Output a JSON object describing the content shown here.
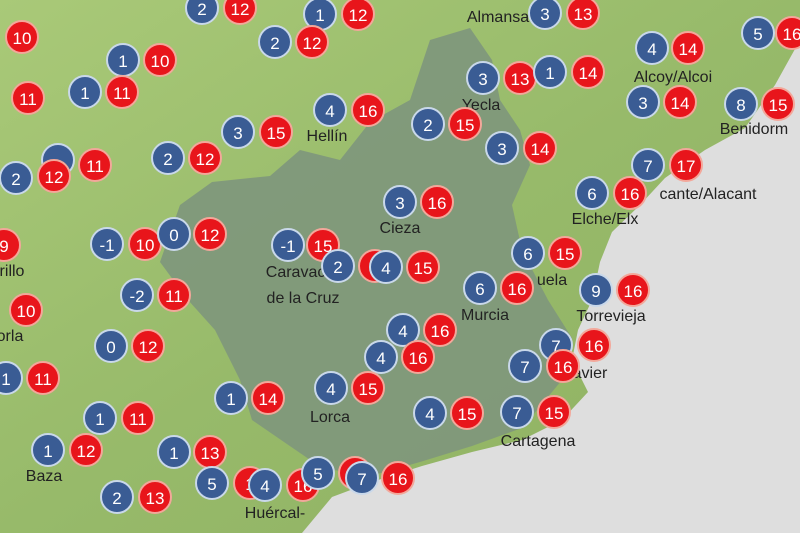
{
  "colors": {
    "min_marker": "#3a5c94",
    "max_marker": "#e8151b",
    "land": "#9cbf6e",
    "region": "#7f977c",
    "sea": "#dedede"
  },
  "places": [
    "Almansa",
    "Alcoy/Alcoi",
    "Yecla",
    "Benidorm",
    "Hellín",
    "cante/Alacant",
    "Elche/Elx",
    "Cieza",
    "Caravaca",
    "de la Cruz",
    "rillo",
    "uela",
    "Murcia",
    "Torrevieja",
    "orla",
    "avier",
    "Lorca",
    "Cartagena",
    "Baza",
    "Huércal-"
  ],
  "markers": [
    {
      "type": "min",
      "value": "2"
    },
    {
      "type": "max",
      "value": "12"
    },
    {
      "type": "min",
      "value": "1"
    },
    {
      "type": "max",
      "value": "12"
    },
    {
      "type": "max",
      "value": "10"
    },
    {
      "type": "min",
      "value": "3"
    },
    {
      "type": "max",
      "value": "13"
    },
    {
      "type": "min",
      "value": "5"
    },
    {
      "type": "max",
      "value": "16"
    },
    {
      "type": "min",
      "value": "1"
    },
    {
      "type": "max",
      "value": "10"
    },
    {
      "type": "min",
      "value": "2"
    },
    {
      "type": "max",
      "value": "12"
    },
    {
      "type": "min",
      "value": "4"
    },
    {
      "type": "max",
      "value": "14"
    },
    {
      "type": "max",
      "value": "11"
    },
    {
      "type": "min",
      "value": "1"
    },
    {
      "type": "max",
      "value": "11"
    },
    {
      "type": "min",
      "value": "3"
    },
    {
      "type": "max",
      "value": "13"
    },
    {
      "type": "min",
      "value": "1"
    },
    {
      "type": "max",
      "value": "14"
    },
    {
      "type": "min",
      "value": "3"
    },
    {
      "type": "max",
      "value": "14"
    },
    {
      "type": "min",
      "value": "8"
    },
    {
      "type": "max",
      "value": "15"
    },
    {
      "type": "min",
      "value": "4"
    },
    {
      "type": "max",
      "value": "16"
    },
    {
      "type": "min",
      "value": "2"
    },
    {
      "type": "max",
      "value": "15"
    },
    {
      "type": "min",
      "value": "3"
    },
    {
      "type": "max",
      "value": "15"
    },
    {
      "type": "min",
      "value": "3"
    },
    {
      "type": "max",
      "value": "14"
    },
    {
      "type": "min",
      "value": "2"
    },
    {
      "type": "max",
      "value": "12"
    },
    {
      "type": "min",
      "value": ""
    },
    {
      "type": "max",
      "value": "11"
    },
    {
      "type": "min",
      "value": "2"
    },
    {
      "type": "max",
      "value": "12"
    },
    {
      "type": "min",
      "value": "7"
    },
    {
      "type": "max",
      "value": "17"
    },
    {
      "type": "min",
      "value": "6"
    },
    {
      "type": "max",
      "value": "16"
    },
    {
      "type": "min",
      "value": "3"
    },
    {
      "type": "max",
      "value": "16"
    },
    {
      "type": "max",
      "value": "9"
    },
    {
      "type": "min",
      "value": "-1"
    },
    {
      "type": "max",
      "value": "10"
    },
    {
      "type": "min",
      "value": "0"
    },
    {
      "type": "max",
      "value": "12"
    },
    {
      "type": "min",
      "value": "-1"
    },
    {
      "type": "max",
      "value": "15"
    },
    {
      "type": "min",
      "value": "6"
    },
    {
      "type": "max",
      "value": "15"
    },
    {
      "type": "max",
      "value": ""
    },
    {
      "type": "min",
      "value": "2"
    },
    {
      "type": "min",
      "value": "4"
    },
    {
      "type": "max",
      "value": "15"
    },
    {
      "type": "min",
      "value": "6"
    },
    {
      "type": "max",
      "value": "16"
    },
    {
      "type": "min",
      "value": "9"
    },
    {
      "type": "max",
      "value": "16"
    },
    {
      "type": "min",
      "value": "-2"
    },
    {
      "type": "max",
      "value": "11"
    },
    {
      "type": "max",
      "value": "10"
    },
    {
      "type": "min",
      "value": "4"
    },
    {
      "type": "max",
      "value": "16"
    },
    {
      "type": "min",
      "value": "0"
    },
    {
      "type": "max",
      "value": "12"
    },
    {
      "type": "min",
      "value": "7"
    },
    {
      "type": "max",
      "value": "16"
    },
    {
      "type": "min",
      "value": "4"
    },
    {
      "type": "max",
      "value": "16"
    },
    {
      "type": "min",
      "value": "7"
    },
    {
      "type": "max",
      "value": "16"
    },
    {
      "type": "min",
      "value": "1"
    },
    {
      "type": "max",
      "value": "11"
    },
    {
      "type": "min",
      "value": "1"
    },
    {
      "type": "max",
      "value": "14"
    },
    {
      "type": "min",
      "value": "4"
    },
    {
      "type": "max",
      "value": "15"
    },
    {
      "type": "min",
      "value": "1"
    },
    {
      "type": "max",
      "value": "11"
    },
    {
      "type": "min",
      "value": "4"
    },
    {
      "type": "max",
      "value": "15"
    },
    {
      "type": "min",
      "value": "7"
    },
    {
      "type": "max",
      "value": "15"
    },
    {
      "type": "min",
      "value": "1"
    },
    {
      "type": "max",
      "value": "12"
    },
    {
      "type": "min",
      "value": "1"
    },
    {
      "type": "max",
      "value": "13"
    },
    {
      "type": "min",
      "value": "5"
    },
    {
      "type": "max",
      "value": "1"
    },
    {
      "type": "min",
      "value": "4"
    },
    {
      "type": "max",
      "value": "16"
    },
    {
      "type": "min",
      "value": "5"
    },
    {
      "type": "max",
      "value": ""
    },
    {
      "type": "min",
      "value": "7"
    },
    {
      "type": "max",
      "value": "16"
    },
    {
      "type": "min",
      "value": "2"
    },
    {
      "type": "max",
      "value": "13"
    }
  ]
}
